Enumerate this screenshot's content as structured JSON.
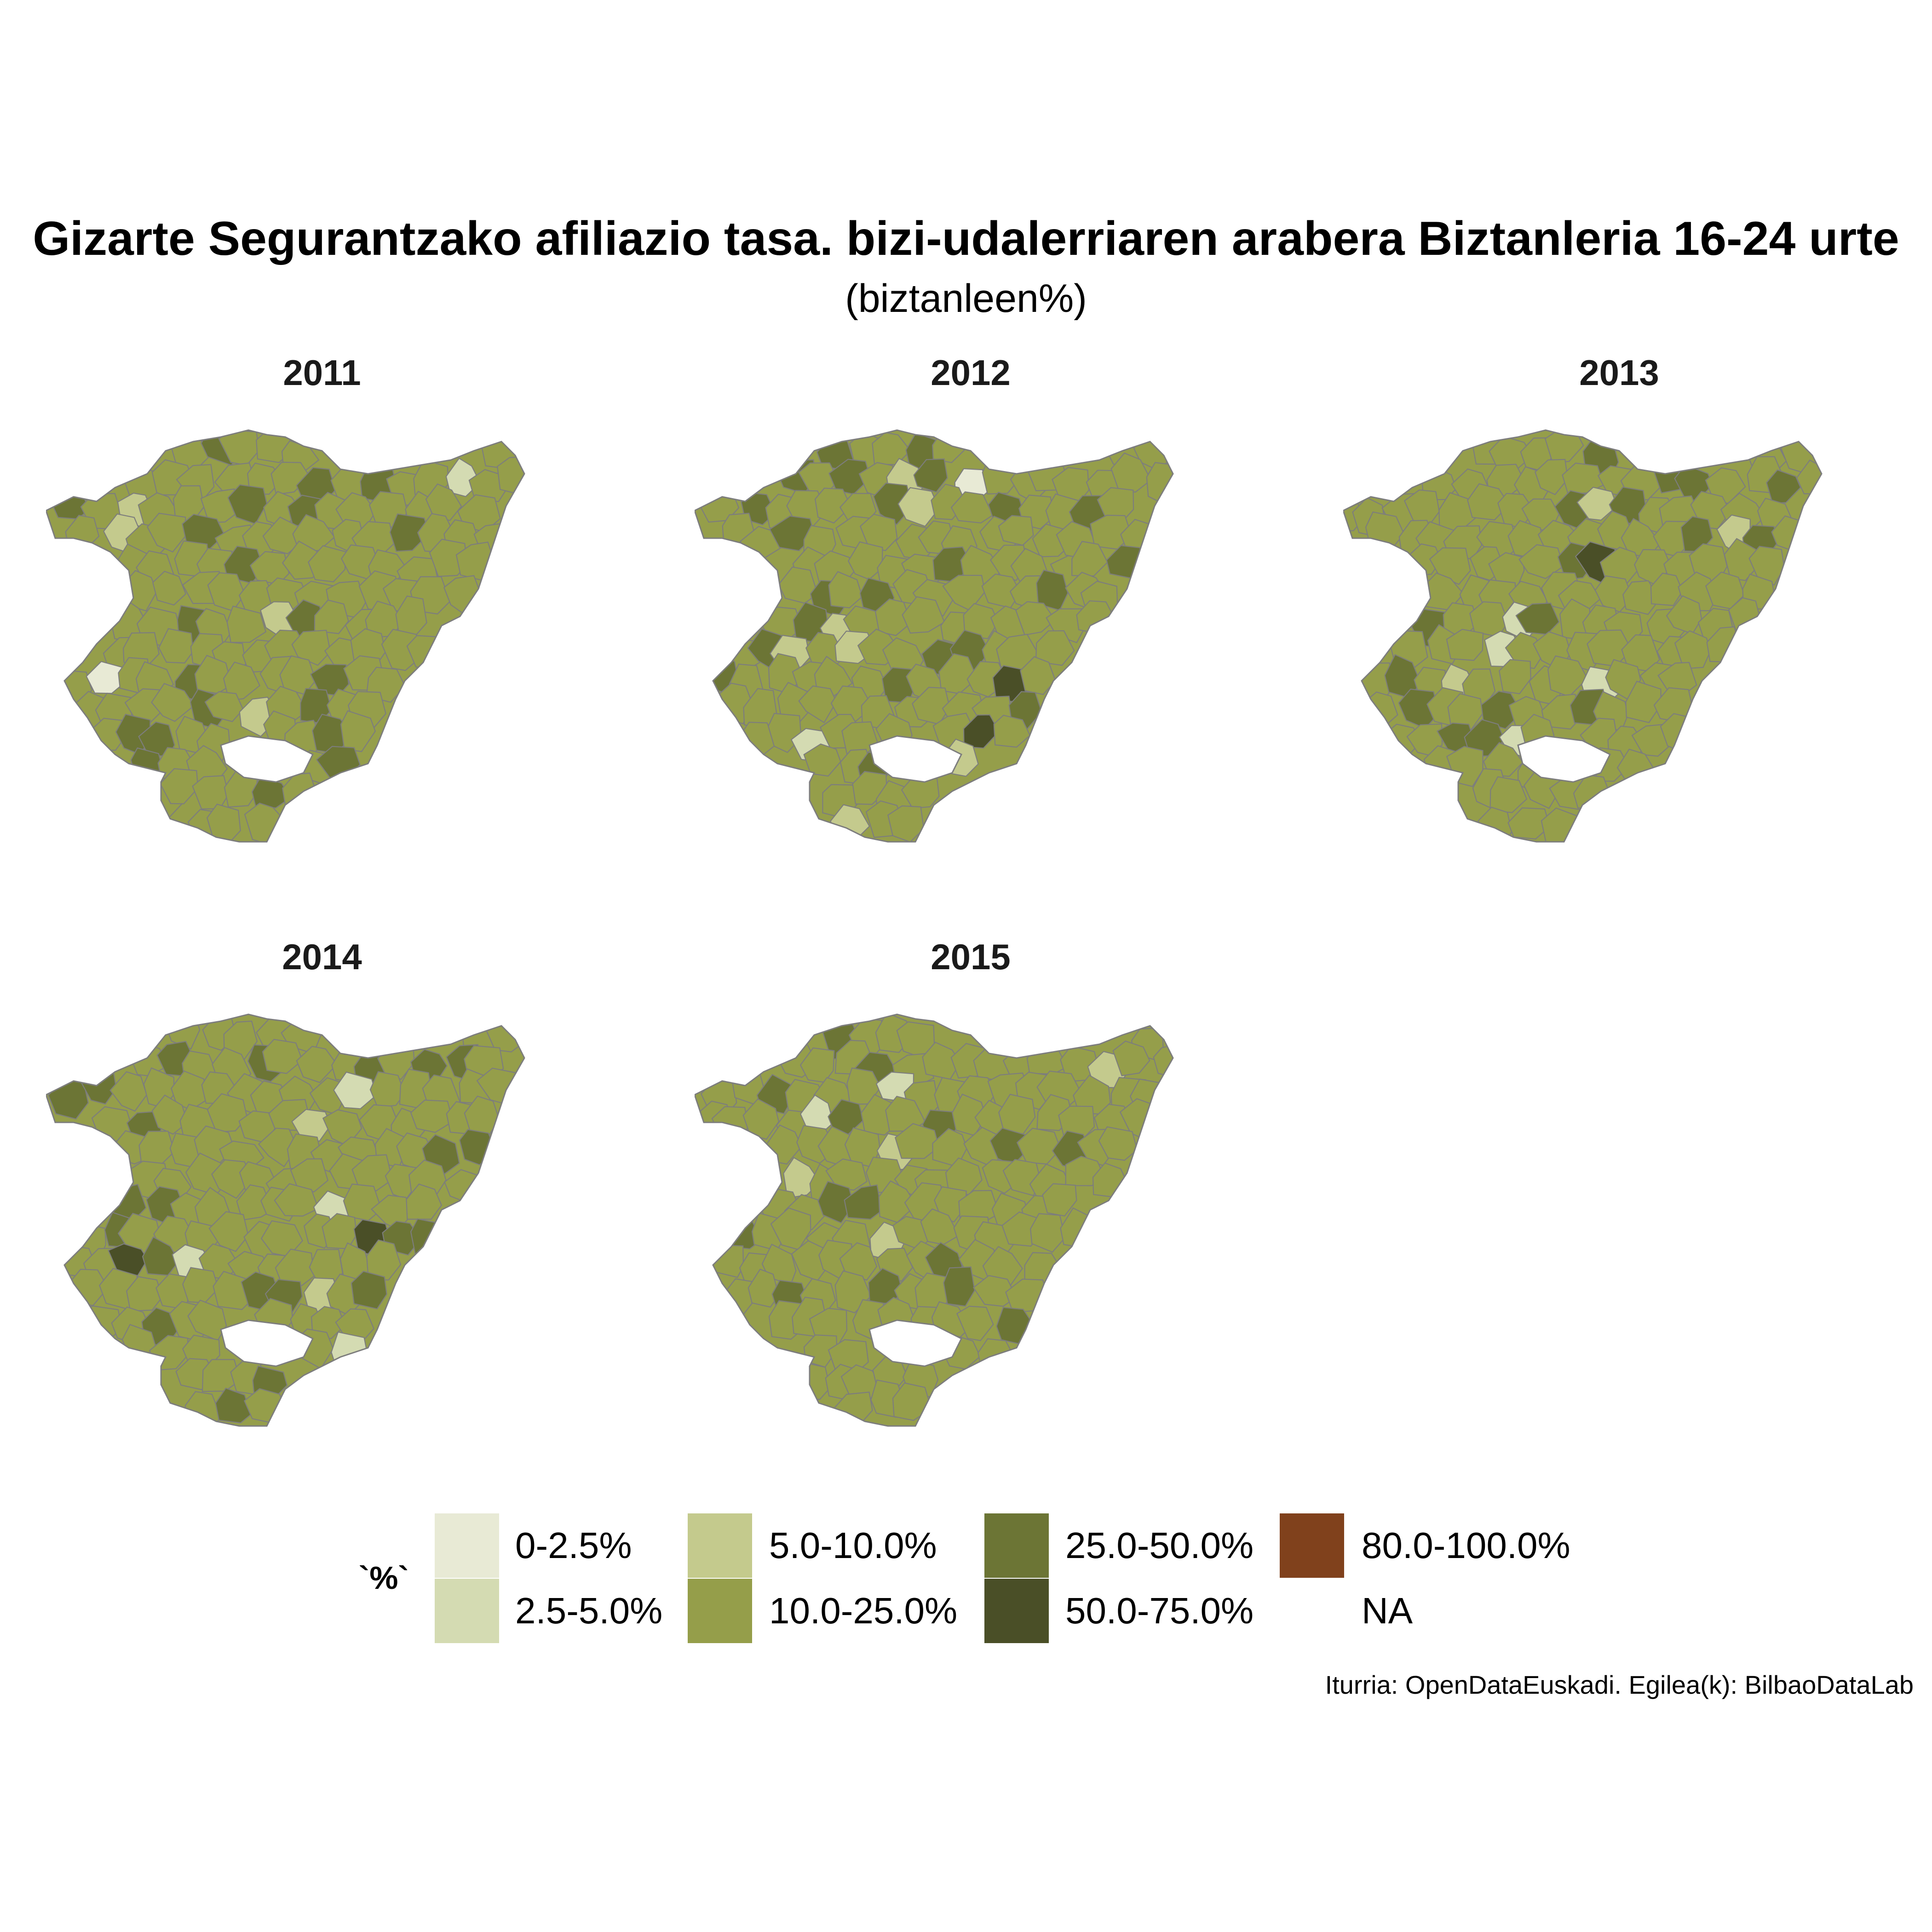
{
  "title": "Gizarte Segurantzako afiliazio tasa. bizi-udalerriaren arabera Biztanleria 16-24 urte",
  "subtitle": "(biztanleen%)",
  "panels": [
    {
      "year": "2011"
    },
    {
      "year": "2012"
    },
    {
      "year": "2013"
    },
    {
      "year": "2014"
    },
    {
      "year": "2015"
    }
  ],
  "legend": {
    "title": "`%`",
    "items": [
      {
        "label": "0-2.5%",
        "color": "#e8ead5"
      },
      {
        "label": "2.5-5.0%",
        "color": "#d4dbb2"
      },
      {
        "label": "5.0-10.0%",
        "color": "#c4ca8d"
      },
      {
        "label": "10.0-25.0%",
        "color": "#959e4a"
      },
      {
        "label": "25.0-50.0%",
        "color": "#6c7535"
      },
      {
        "label": "50.0-75.0%",
        "color": "#4a4f27"
      },
      {
        "label": "80.0-100.0%",
        "color": "#80411c"
      },
      {
        "label": "NA",
        "color": "#ffffff"
      }
    ]
  },
  "caption": "Iturria: OpenDataEuskadi. Egilea(k): BilbaoDataLab"
}
